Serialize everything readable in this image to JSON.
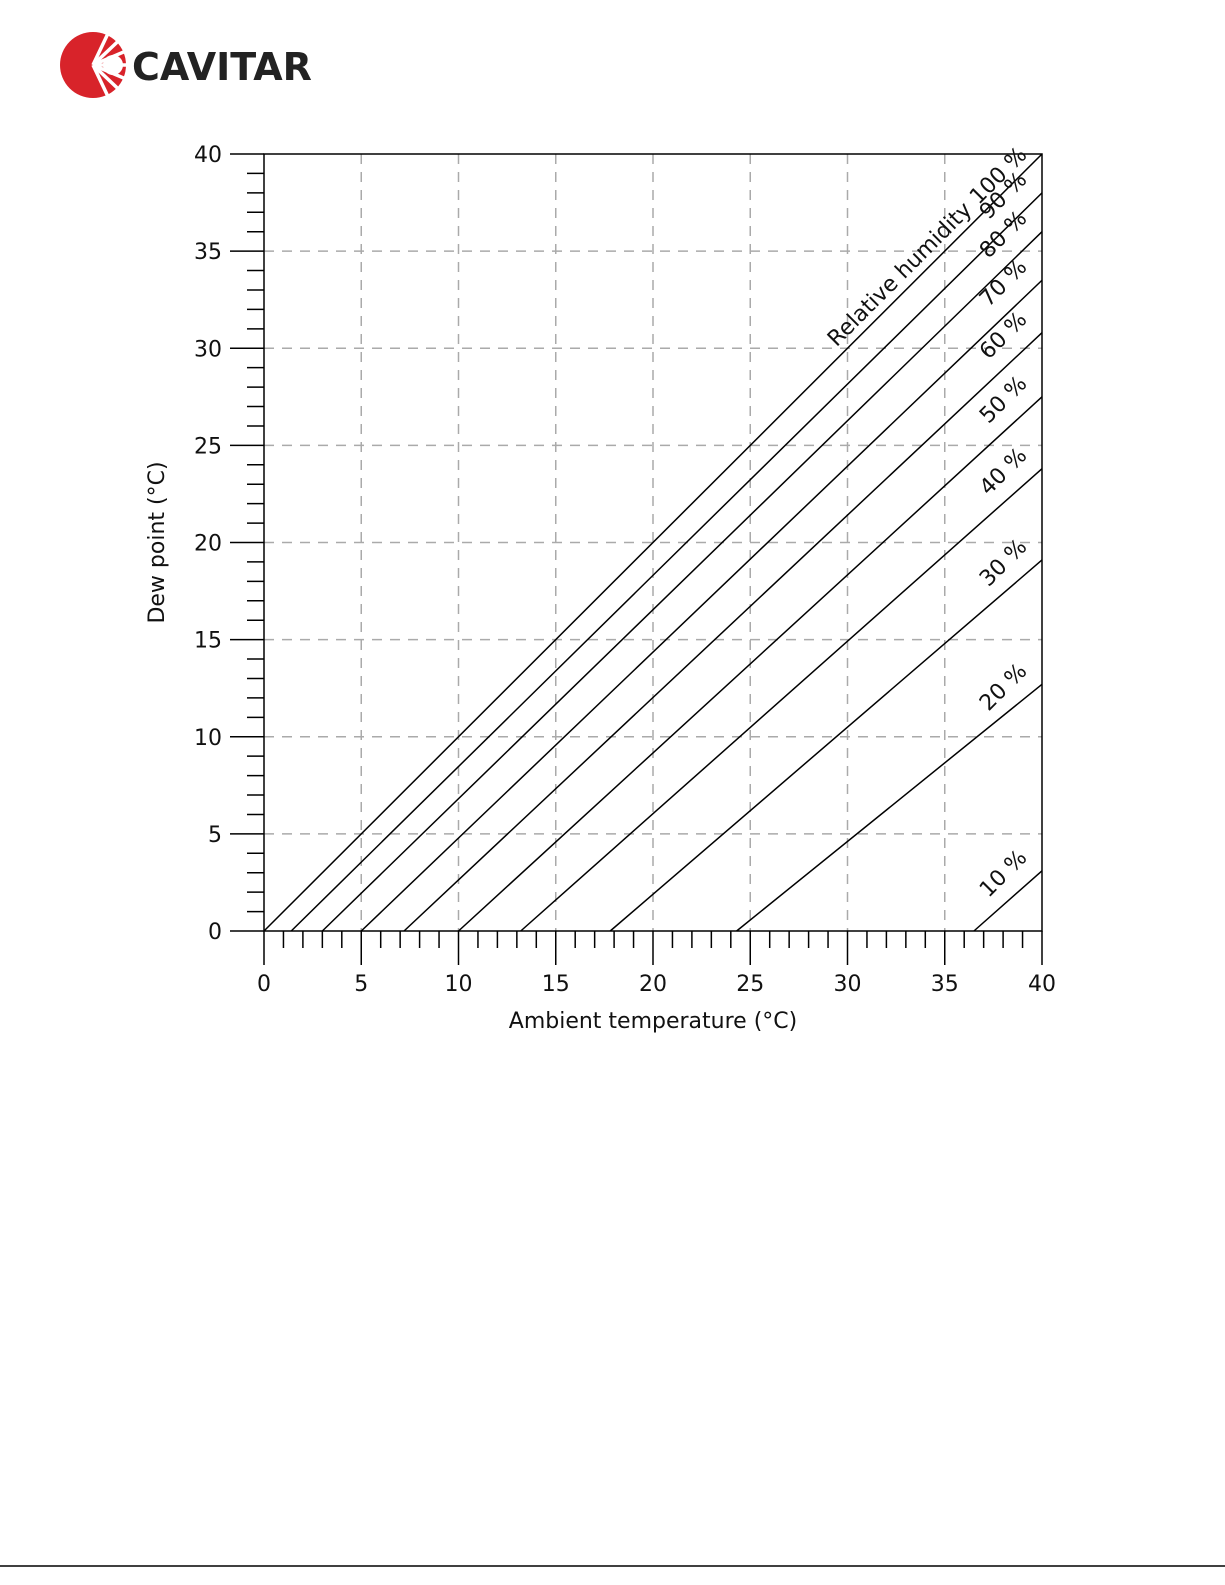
{
  "header": {
    "logo_text": "CAVITAR"
  },
  "chart_data": {
    "type": "line",
    "xlabel": "Ambient temperature (°C)",
    "ylabel": "Dew point (°C)",
    "annotation": "Relative humidity",
    "xlim": [
      0,
      40
    ],
    "ylim": [
      0,
      40
    ],
    "xticks": [
      0,
      5,
      10,
      15,
      20,
      25,
      30,
      35,
      40
    ],
    "yticks": [
      0,
      5,
      10,
      15,
      20,
      25,
      30,
      35,
      40
    ],
    "minor_tick_step": 1,
    "grid": true,
    "series": [
      {
        "name": "100 %",
        "color": "#000000",
        "x": [
          0,
          40
        ],
        "values": [
          0,
          40
        ]
      },
      {
        "name": "90 %",
        "color": "#000000",
        "x": [
          1.4,
          40
        ],
        "values": [
          0,
          38
        ]
      },
      {
        "name": "80 %",
        "color": "#000000",
        "x": [
          3,
          40
        ],
        "values": [
          0,
          36
        ]
      },
      {
        "name": "70 %",
        "color": "#000000",
        "x": [
          5,
          40
        ],
        "values": [
          0,
          33.5
        ]
      },
      {
        "name": "60 %",
        "color": "#000000",
        "x": [
          7.2,
          40
        ],
        "values": [
          0,
          30.8
        ]
      },
      {
        "name": "50 %",
        "color": "#000000",
        "x": [
          10,
          40
        ],
        "values": [
          0,
          27.5
        ]
      },
      {
        "name": "40 %",
        "color": "#000000",
        "x": [
          13.2,
          40
        ],
        "values": [
          0,
          23.8
        ]
      },
      {
        "name": "30 %",
        "color": "#000000",
        "x": [
          17.8,
          40
        ],
        "values": [
          0,
          19.1
        ]
      },
      {
        "name": "20 %",
        "color": "#000000",
        "x": [
          24.3,
          40
        ],
        "values": [
          0,
          12.7
        ]
      },
      {
        "name": "10 %",
        "color": "#000000",
        "x": [
          36.5,
          40
        ],
        "values": [
          0,
          3.1
        ]
      }
    ]
  }
}
